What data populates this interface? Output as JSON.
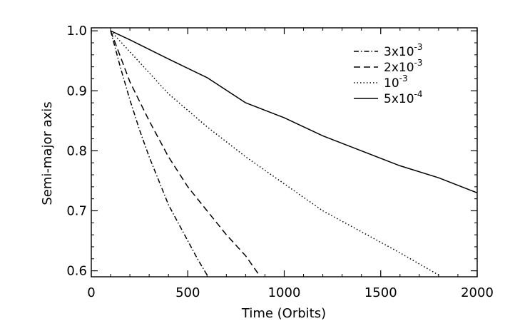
{
  "chart_data": {
    "type": "line",
    "xlabel": "Time (Orbits)",
    "ylabel": "Semi-major axis",
    "xlim": [
      0,
      2000
    ],
    "ylim": [
      0.59,
      1.005
    ],
    "xticks": [
      0,
      500,
      1000,
      1500,
      2000
    ],
    "xtick_labels": [
      "0",
      "500",
      "1000",
      "1500",
      "2000"
    ],
    "yticks": [
      0.6,
      0.7,
      0.8,
      0.9,
      1.0
    ],
    "ytick_labels": [
      "0.6",
      "0.7",
      "0.8",
      "0.9",
      "1.0"
    ],
    "grid": false,
    "legend_position": "top-right",
    "series": [
      {
        "name": "3x10-3",
        "legend": {
          "base": "3x10",
          "exp": "-3"
        },
        "style": "dash-dot",
        "x": [
          100,
          150,
          200,
          250,
          300,
          350,
          400,
          450,
          500,
          550,
          600
        ],
        "y": [
          1.0,
          0.94,
          0.885,
          0.835,
          0.79,
          0.75,
          0.71,
          0.68,
          0.65,
          0.62,
          0.593
        ]
      },
      {
        "name": "2x10-3",
        "legend": {
          "base": "2x10",
          "exp": "-3"
        },
        "style": "dashed",
        "x": [
          100,
          200,
          300,
          400,
          500,
          600,
          700,
          800,
          870
        ],
        "y": [
          1.0,
          0.915,
          0.85,
          0.79,
          0.74,
          0.7,
          0.66,
          0.625,
          0.593
        ]
      },
      {
        "name": "10-3",
        "legend": {
          "base": "10",
          "exp": "-3"
        },
        "style": "dotted",
        "x": [
          100,
          200,
          400,
          600,
          800,
          1000,
          1200,
          1400,
          1600,
          1800
        ],
        "y": [
          1.0,
          0.965,
          0.895,
          0.84,
          0.79,
          0.745,
          0.7,
          0.665,
          0.63,
          0.593
        ]
      },
      {
        "name": "5x10-4",
        "legend": {
          "base": "5x10",
          "exp": "-4"
        },
        "style": "solid",
        "x": [
          100,
          200,
          400,
          600,
          800,
          1000,
          1200,
          1400,
          1600,
          1800,
          2000
        ],
        "y": [
          1.0,
          0.985,
          0.953,
          0.922,
          0.88,
          0.855,
          0.825,
          0.8,
          0.775,
          0.755,
          0.73
        ]
      }
    ]
  }
}
